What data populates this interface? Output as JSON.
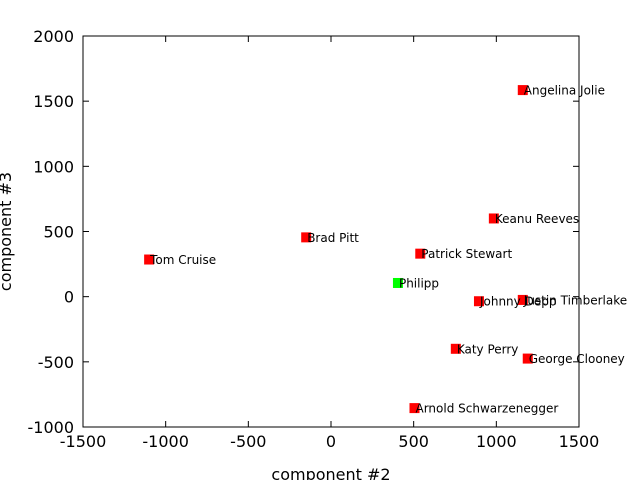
{
  "chart_data": {
    "type": "scatter",
    "title": "",
    "xlabel": "component #2",
    "ylabel": "component #3",
    "xlim": [
      -1500,
      1500
    ],
    "ylim": [
      -1000,
      2000
    ],
    "xticks": [
      -1500,
      -1000,
      -500,
      0,
      500,
      1000,
      1500
    ],
    "yticks": [
      -1000,
      -500,
      0,
      500,
      1000,
      1500,
      2000
    ],
    "xtick_labels": [
      "-1500",
      "-1000",
      "-500",
      "0",
      "500",
      "1000",
      "1500"
    ],
    "ytick_labels": [
      "-1000",
      "-500",
      "0",
      "500",
      "1000",
      "1500",
      "2000"
    ],
    "grid": false,
    "points": [
      {
        "label": "Angelina Jolie",
        "x": 1160,
        "y": 1585,
        "color": "#ff0000"
      },
      {
        "label": "Keanu Reeves",
        "x": 985,
        "y": 600,
        "color": "#ff0000"
      },
      {
        "label": "Brad Pitt",
        "x": -150,
        "y": 455,
        "color": "#ff0000"
      },
      {
        "label": "Patrick Stewart",
        "x": 540,
        "y": 330,
        "color": "#ff0000"
      },
      {
        "label": "Tom Cruise",
        "x": -1100,
        "y": 285,
        "color": "#ff0000"
      },
      {
        "label": "Philipp",
        "x": 405,
        "y": 105,
        "color": "#00ff00"
      },
      {
        "label": "Justin Timberlake",
        "x": 1160,
        "y": -25,
        "color": "#ff0000"
      },
      {
        "label": "Johnny Depp",
        "x": 895,
        "y": -35,
        "color": "#ff0000"
      },
      {
        "label": "Katy Perry",
        "x": 755,
        "y": -400,
        "color": "#ff0000"
      },
      {
        "label": "George Clooney",
        "x": 1190,
        "y": -475,
        "color": "#ff0000"
      },
      {
        "label": "Arnold Schwarzenegger",
        "x": 505,
        "y": -855,
        "color": "#ff0000"
      }
    ]
  }
}
